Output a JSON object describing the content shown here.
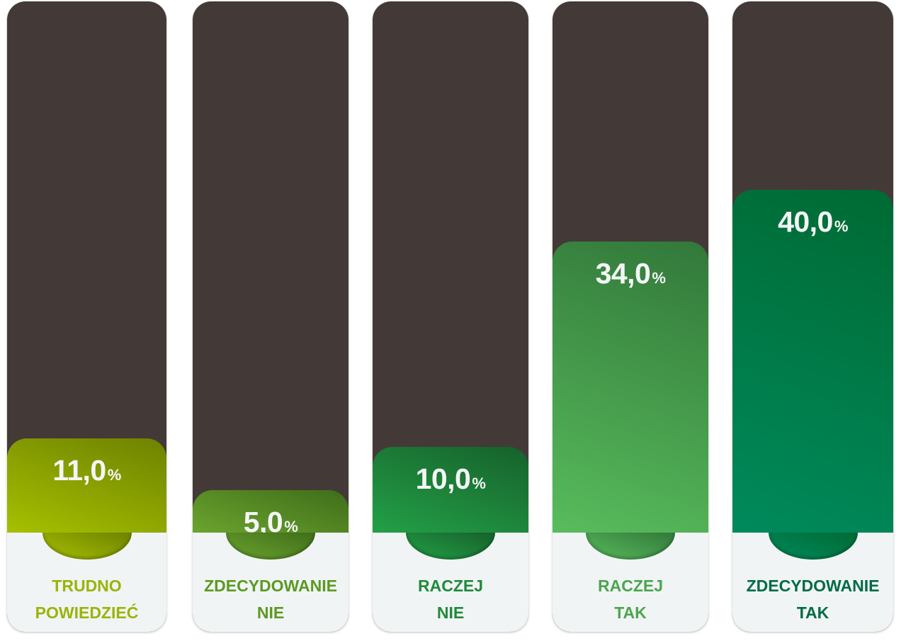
{
  "chart_data": {
    "type": "bar",
    "categories": [
      "TRUDNO POWIEDZIEĆ",
      "ZDECYDOWANIE NIE",
      "RACZEJ NIE",
      "RACZEJ TAK",
      "ZDECYDOWANIE TAK"
    ],
    "values": [
      11.0,
      5.0,
      10.0,
      34.0,
      40.0
    ],
    "unit": "%",
    "value_labels": [
      "11,0",
      "5,0",
      "10,0",
      "34,0",
      "40,0"
    ],
    "label_lines": [
      [
        "TRUDNO",
        "POWIEDZIEĆ"
      ],
      [
        "ZDECYDOWANIE",
        "NIE"
      ],
      [
        "RACZEJ",
        "NIE"
      ],
      [
        "RACZEJ",
        "TAK"
      ],
      [
        "ZDECYDOWANIE",
        "TAK"
      ]
    ],
    "colors": [
      {
        "light": "#a6c000",
        "dark": "#6e8200",
        "text": "#9ab30a"
      },
      {
        "light": "#6ba42e",
        "dark": "#3f6d1a",
        "text": "#5a9a22"
      },
      {
        "light": "#23a047",
        "dark": "#16612b",
        "text": "#1f8a3c"
      },
      {
        "light": "#58bc5c",
        "dark": "#32783a",
        "text": "#4aa64f"
      },
      {
        "light": "#008a5c",
        "dark": "#006a33",
        "text": "#006b45"
      }
    ],
    "track_color": "#433a37",
    "ylim": [
      0,
      40
    ]
  }
}
